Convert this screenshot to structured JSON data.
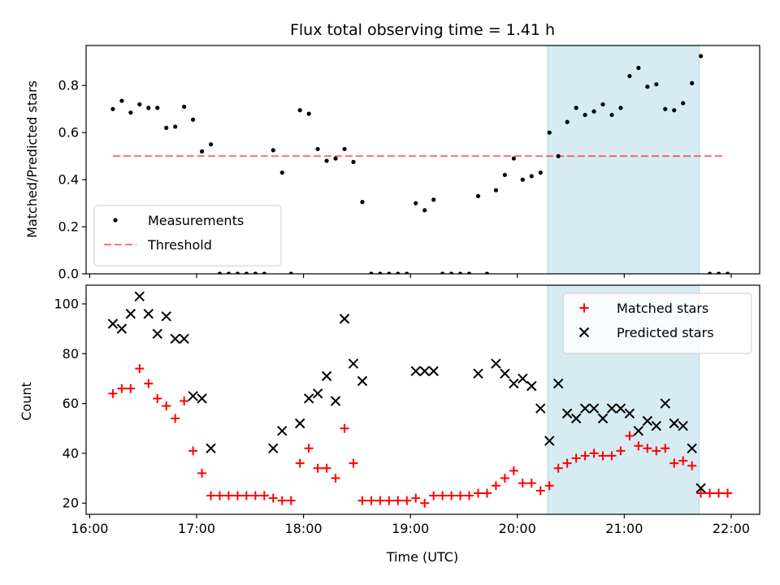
{
  "title": "Flux total observing time = 1.41 h",
  "colors": {
    "shade": "#add8e6",
    "measurement": "#000000",
    "threshold": "#ff0000",
    "matched": "#ff0000",
    "predicted": "#000000"
  },
  "chart_data": [
    {
      "type": "scatter",
      "panel": "top",
      "ylabel": "Matched/Predicted stars",
      "xlabel": "",
      "ylim": [
        0,
        0.97
      ],
      "yticks": [
        0.0,
        0.2,
        0.4,
        0.6,
        0.8
      ],
      "ytick_labels": [
        "0.0",
        "0.2",
        "0.4",
        "0.6",
        "0.8"
      ],
      "xlim": [
        "15:58",
        "22:16"
      ],
      "shaded_region": [
        "20:17",
        "21:42"
      ],
      "legend": {
        "placement": "lower-left",
        "entries": [
          "Measurements",
          "Threshold"
        ]
      },
      "threshold": {
        "name": "Threshold",
        "value": 0.5,
        "x_range": [
          "16:13",
          "21:56"
        ]
      },
      "series": [
        {
          "name": "Measurements",
          "points": [
            [
              "16:13",
              0.7
            ],
            [
              "16:18",
              0.735
            ],
            [
              "16:23",
              0.685
            ],
            [
              "16:28",
              0.72
            ],
            [
              "16:33",
              0.705
            ],
            [
              "16:38",
              0.705
            ],
            [
              "16:43",
              0.62
            ],
            [
              "16:48",
              0.625
            ],
            [
              "16:53",
              0.71
            ],
            [
              "16:58",
              0.655
            ],
            [
              "17:03",
              0.52
            ],
            [
              "17:08",
              0.55
            ],
            [
              "17:13",
              0.0
            ],
            [
              "17:18",
              0.0
            ],
            [
              "17:23",
              0.0
            ],
            [
              "17:28",
              0.0
            ],
            [
              "17:33",
              0.0
            ],
            [
              "17:38",
              0.0
            ],
            [
              "17:43",
              0.525
            ],
            [
              "17:48",
              0.43
            ],
            [
              "17:53",
              0.0
            ],
            [
              "17:58",
              0.695
            ],
            [
              "18:03",
              0.68
            ],
            [
              "18:08",
              0.53
            ],
            [
              "18:13",
              0.48
            ],
            [
              "18:18",
              0.49
            ],
            [
              "18:23",
              0.53
            ],
            [
              "18:28",
              0.475
            ],
            [
              "18:33",
              0.305
            ],
            [
              "18:38",
              0.0
            ],
            [
              "18:43",
              0.0
            ],
            [
              "18:48",
              0.0
            ],
            [
              "18:53",
              0.0
            ],
            [
              "18:58",
              0.0
            ],
            [
              "19:03",
              0.3
            ],
            [
              "19:08",
              0.27
            ],
            [
              "19:13",
              0.315
            ],
            [
              "19:18",
              0.0
            ],
            [
              "19:23",
              0.0
            ],
            [
              "19:28",
              0.0
            ],
            [
              "19:33",
              0.0
            ],
            [
              "19:38",
              0.33
            ],
            [
              "19:43",
              0.0
            ],
            [
              "19:48",
              0.355
            ],
            [
              "19:53",
              0.42
            ],
            [
              "19:58",
              0.49
            ],
            [
              "20:03",
              0.4
            ],
            [
              "20:08",
              0.415
            ],
            [
              "20:13",
              0.43
            ],
            [
              "20:18",
              0.6
            ],
            [
              "20:23",
              0.5
            ],
            [
              "20:28",
              0.645
            ],
            [
              "20:33",
              0.705
            ],
            [
              "20:38",
              0.675
            ],
            [
              "20:43",
              0.69
            ],
            [
              "20:48",
              0.72
            ],
            [
              "20:53",
              0.675
            ],
            [
              "20:58",
              0.705
            ],
            [
              "21:03",
              0.84
            ],
            [
              "21:08",
              0.875
            ],
            [
              "21:13",
              0.795
            ],
            [
              "21:18",
              0.805
            ],
            [
              "21:23",
              0.7
            ],
            [
              "21:28",
              0.695
            ],
            [
              "21:33",
              0.725
            ],
            [
              "21:38",
              0.81
            ],
            [
              "21:43",
              0.925
            ],
            [
              "21:48",
              0.0
            ],
            [
              "21:53",
              0.0
            ],
            [
              "21:58",
              0.0
            ]
          ]
        }
      ]
    },
    {
      "type": "scatter",
      "panel": "bottom",
      "ylabel": "Count",
      "xlabel": "Time (UTC)",
      "ylim": [
        15.5,
        107.5
      ],
      "yticks": [
        20,
        40,
        60,
        80,
        100
      ],
      "ytick_labels": [
        "20",
        "40",
        "60",
        "80",
        "100"
      ],
      "xlim": [
        "15:58",
        "22:16"
      ],
      "xticks": [
        "16:00",
        "17:00",
        "18:00",
        "19:00",
        "20:00",
        "21:00",
        "22:00"
      ],
      "xtick_labels": [
        "16:00",
        "17:00",
        "18:00",
        "19:00",
        "20:00",
        "21:00",
        "22:00"
      ],
      "shaded_region": [
        "20:17",
        "21:42"
      ],
      "legend": {
        "placement": "top-right",
        "entries": [
          "Matched stars",
          "Predicted stars"
        ]
      },
      "series": [
        {
          "name": "Matched stars",
          "marker": "plus",
          "points": [
            [
              "16:13",
              64
            ],
            [
              "16:18",
              66
            ],
            [
              "16:23",
              66
            ],
            [
              "16:28",
              74
            ],
            [
              "16:33",
              68
            ],
            [
              "16:38",
              62
            ],
            [
              "16:43",
              59
            ],
            [
              "16:48",
              54
            ],
            [
              "16:53",
              61
            ],
            [
              "16:58",
              41
            ],
            [
              "17:03",
              32
            ],
            [
              "17:08",
              23
            ],
            [
              "17:13",
              23
            ],
            [
              "17:18",
              23
            ],
            [
              "17:23",
              23
            ],
            [
              "17:28",
              23
            ],
            [
              "17:33",
              23
            ],
            [
              "17:38",
              23
            ],
            [
              "17:43",
              22
            ],
            [
              "17:48",
              21
            ],
            [
              "17:53",
              21
            ],
            [
              "17:58",
              36
            ],
            [
              "18:03",
              42
            ],
            [
              "18:08",
              34
            ],
            [
              "18:13",
              34
            ],
            [
              "18:18",
              30
            ],
            [
              "18:23",
              50
            ],
            [
              "18:28",
              36
            ],
            [
              "18:33",
              21
            ],
            [
              "18:38",
              21
            ],
            [
              "18:43",
              21
            ],
            [
              "18:48",
              21
            ],
            [
              "18:53",
              21
            ],
            [
              "18:58",
              21
            ],
            [
              "19:03",
              22
            ],
            [
              "19:08",
              20
            ],
            [
              "19:13",
              23
            ],
            [
              "19:18",
              23
            ],
            [
              "19:23",
              23
            ],
            [
              "19:28",
              23
            ],
            [
              "19:33",
              23
            ],
            [
              "19:38",
              24
            ],
            [
              "19:43",
              24
            ],
            [
              "19:48",
              27
            ],
            [
              "19:53",
              30
            ],
            [
              "19:58",
              33
            ],
            [
              "20:03",
              28
            ],
            [
              "20:08",
              28
            ],
            [
              "20:13",
              25
            ],
            [
              "20:18",
              27
            ],
            [
              "20:23",
              34
            ],
            [
              "20:28",
              36
            ],
            [
              "20:33",
              38
            ],
            [
              "20:38",
              39
            ],
            [
              "20:43",
              40
            ],
            [
              "20:48",
              39
            ],
            [
              "20:53",
              39
            ],
            [
              "20:58",
              41
            ],
            [
              "21:03",
              47
            ],
            [
              "21:08",
              43
            ],
            [
              "21:13",
              42
            ],
            [
              "21:18",
              41
            ],
            [
              "21:23",
              42
            ],
            [
              "21:28",
              36
            ],
            [
              "21:33",
              37
            ],
            [
              "21:38",
              35
            ],
            [
              "21:43",
              24
            ],
            [
              "21:48",
              24
            ],
            [
              "21:53",
              24
            ],
            [
              "21:58",
              24
            ]
          ]
        },
        {
          "name": "Predicted stars",
          "marker": "x",
          "points": [
            [
              "16:13",
              92
            ],
            [
              "16:18",
              90
            ],
            [
              "16:23",
              96
            ],
            [
              "16:28",
              103
            ],
            [
              "16:33",
              96
            ],
            [
              "16:38",
              88
            ],
            [
              "16:43",
              95
            ],
            [
              "16:48",
              86
            ],
            [
              "16:53",
              86
            ],
            [
              "16:58",
              63
            ],
            [
              "17:03",
              62
            ],
            [
              "17:08",
              42
            ],
            [
              "17:43",
              42
            ],
            [
              "17:48",
              49
            ],
            [
              "17:58",
              52
            ],
            [
              "18:03",
              62
            ],
            [
              "18:08",
              64
            ],
            [
              "18:13",
              71
            ],
            [
              "18:18",
              61
            ],
            [
              "18:23",
              94
            ],
            [
              "18:28",
              76
            ],
            [
              "18:33",
              69
            ],
            [
              "19:03",
              73
            ],
            [
              "19:08",
              73
            ],
            [
              "19:13",
              73
            ],
            [
              "19:38",
              72
            ],
            [
              "19:48",
              76
            ],
            [
              "19:53",
              72
            ],
            [
              "19:58",
              68
            ],
            [
              "20:03",
              70
            ],
            [
              "20:08",
              67
            ],
            [
              "20:13",
              58
            ],
            [
              "20:18",
              45
            ],
            [
              "20:23",
              68
            ],
            [
              "20:28",
              56
            ],
            [
              "20:33",
              54
            ],
            [
              "20:38",
              58
            ],
            [
              "20:43",
              58
            ],
            [
              "20:48",
              54
            ],
            [
              "20:53",
              58
            ],
            [
              "20:58",
              58
            ],
            [
              "21:03",
              56
            ],
            [
              "21:08",
              49
            ],
            [
              "21:13",
              53
            ],
            [
              "21:18",
              51
            ],
            [
              "21:23",
              60
            ],
            [
              "21:28",
              52
            ],
            [
              "21:33",
              51
            ],
            [
              "21:38",
              42
            ],
            [
              "21:43",
              26
            ]
          ]
        }
      ]
    }
  ]
}
